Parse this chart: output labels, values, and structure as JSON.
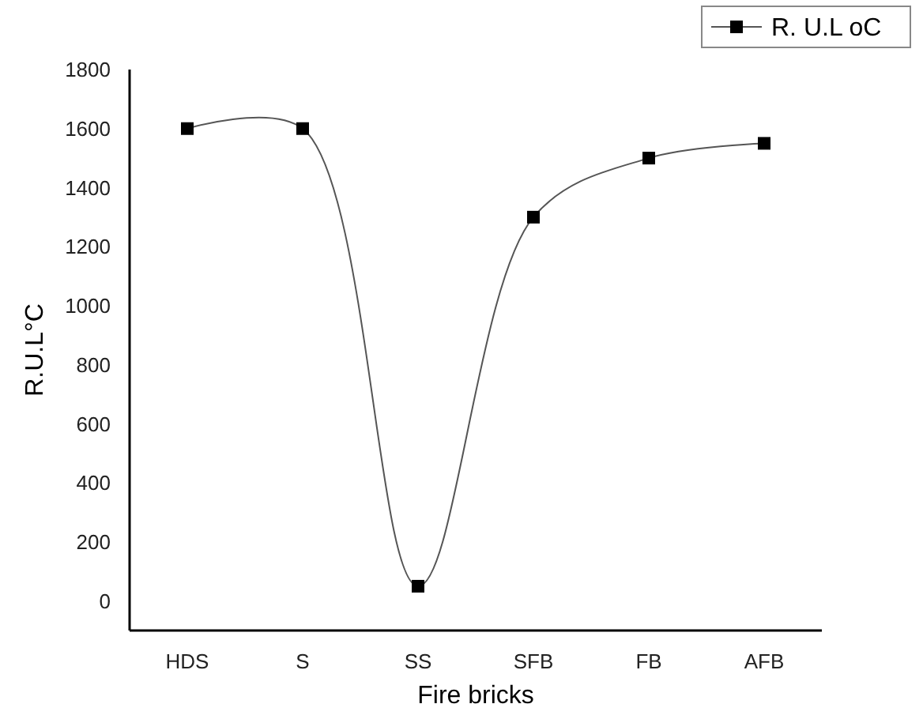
{
  "chart_data": {
    "type": "line",
    "xlabel": "Fire bricks",
    "ylabel": "R.U.L°C",
    "categories": [
      "HDS",
      "S",
      "SS",
      "SFB",
      "FB",
      "AFB"
    ],
    "series": [
      {
        "name": "R. U.L oC",
        "color": "#000000",
        "values": [
          1600,
          1600,
          50,
          1300,
          1500,
          1550
        ]
      }
    ],
    "ylim": [
      -100,
      1800
    ],
    "yticks": [
      0,
      200,
      400,
      600,
      800,
      1000,
      1200,
      1400,
      1600,
      1800
    ],
    "grid": false,
    "legend": "top right",
    "marker": "square",
    "line_style": "solid"
  }
}
